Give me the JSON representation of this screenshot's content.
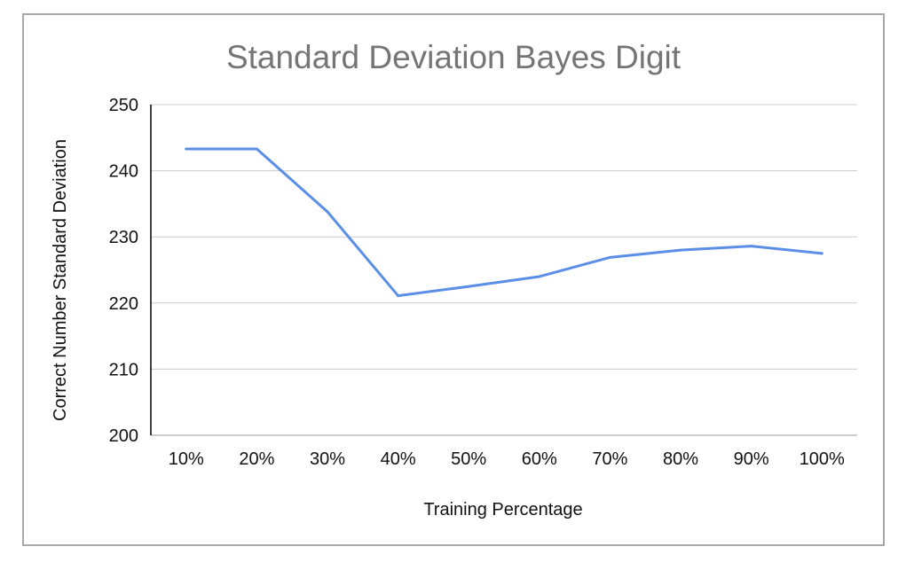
{
  "chart_data": {
    "type": "line",
    "title": "Standard Deviation Bayes Digit",
    "xlabel": "Training Percentage",
    "ylabel": "Correct Number Standard Deviation",
    "categories": [
      "10%",
      "20%",
      "30%",
      "40%",
      "50%",
      "60%",
      "70%",
      "80%",
      "90%",
      "100%"
    ],
    "series": [
      {
        "values": [
          243.3,
          243.3,
          233.8,
          221.1,
          222.5,
          224.0,
          226.9,
          228.0,
          228.6,
          227.5
        ],
        "color": "#5b8ee6"
      }
    ],
    "ylim": [
      200,
      250
    ],
    "yticks": [
      200,
      210,
      220,
      230,
      240,
      250
    ],
    "grid": true,
    "legend": "none",
    "colors": {
      "line": "#5b8ee6",
      "grid": "#cccccc",
      "axis": "#000000",
      "title": "#757575",
      "frame": "#a8a8a8"
    }
  }
}
